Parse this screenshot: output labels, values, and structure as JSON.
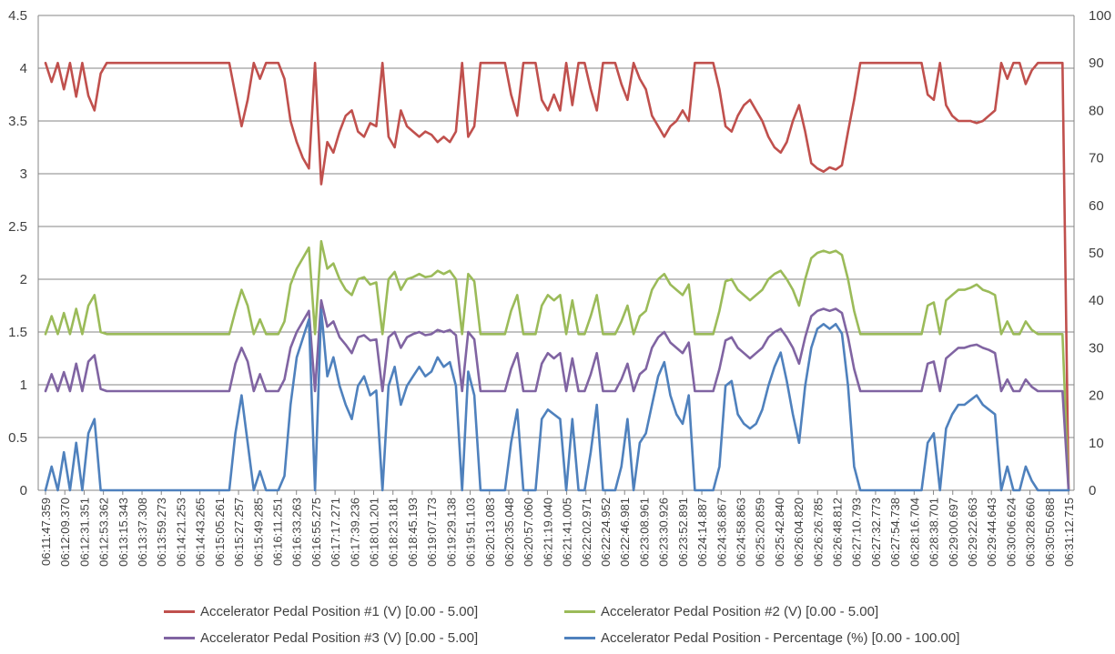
{
  "chart_data": {
    "type": "line",
    "title": "",
    "xlabel": "",
    "ylabel": "",
    "ylim": [
      0,
      4.5
    ],
    "y2lim": [
      0,
      100
    ],
    "y_ticks": [
      "0",
      "0.5",
      "1",
      "1.5",
      "2",
      "2.5",
      "3",
      "3.5",
      "4",
      "4.5"
    ],
    "y2_ticks": [
      "0",
      "10",
      "20",
      "30",
      "40",
      "50",
      "60",
      "70",
      "80",
      "90",
      "100"
    ],
    "grid": true,
    "legend_position": "bottom",
    "x_labels": [
      "06:11:47.359",
      "06:12:09.370",
      "06:12:31.351",
      "06:12:53.362",
      "06:13:15.343",
      "06:13:37.308",
      "06:13:59.273",
      "06:14:21.253",
      "06:14:43.265",
      "06:15:05.261",
      "06:15:27.257",
      "06:15:49.285",
      "06:16:11.251",
      "06:16:33.263",
      "06:16:55.275",
      "06:17:17.271",
      "06:17:39.236",
      "06:18:01.201",
      "06:18:23.181",
      "06:18:45.193",
      "06:19:07.173",
      "06:19:29.138",
      "06:19:51.103",
      "06:20:13.083",
      "06:20:35.048",
      "06:20:57.060",
      "06:21:19.040",
      "06:21:41.005",
      "06:22:02.971",
      "06:22:24.952",
      "06:22:46.981",
      "06:23:08.961",
      "06:23:30.926",
      "06:23:52.891",
      "06:24:14.887",
      "06:24:36.867",
      "06:24:58.863",
      "06:25:20.859",
      "06:25:42.840",
      "06:26:04.820",
      "06:26:26.785",
      "06:26:48.812",
      "06:27:10.793",
      "06:27:32.773",
      "06:27:54.738",
      "06:28:16.704",
      "06:28:38.701",
      "06:29:00.697",
      "06:29:22.663",
      "06:29:44.643",
      "06:30:06.624",
      "06:30:28.660",
      "06:30:50.688",
      "06:31:12.715"
    ],
    "series": [
      {
        "name": "Accelerator Pedal Position #1 (V) [0.00 - 5.00]",
        "color": "#C0504D",
        "axis": "left",
        "values": [
          4.05,
          3.87,
          4.05,
          3.8,
          4.05,
          3.73,
          4.05,
          3.74,
          3.6,
          3.95,
          4.05,
          4.05,
          4.05,
          4.05,
          4.05,
          4.05,
          4.05,
          4.05,
          4.05,
          4.05,
          4.05,
          4.05,
          4.05,
          4.05,
          4.05,
          4.05,
          4.05,
          4.05,
          4.05,
          4.05,
          4.05,
          3.75,
          3.45,
          3.7,
          4.05,
          3.9,
          4.05,
          4.05,
          4.05,
          3.9,
          3.5,
          3.3,
          3.15,
          3.05,
          4.05,
          2.9,
          3.3,
          3.2,
          3.4,
          3.55,
          3.6,
          3.4,
          3.35,
          3.48,
          3.45,
          4.05,
          3.35,
          3.25,
          3.6,
          3.45,
          3.4,
          3.35,
          3.4,
          3.37,
          3.3,
          3.35,
          3.3,
          3.4,
          4.05,
          3.35,
          3.45,
          4.05,
          4.05,
          4.05,
          4.05,
          4.05,
          3.75,
          3.55,
          4.05,
          4.05,
          4.05,
          3.7,
          3.6,
          3.75,
          3.6,
          4.05,
          3.65,
          4.05,
          4.05,
          3.8,
          3.6,
          4.05,
          4.05,
          4.05,
          3.85,
          3.7,
          4.05,
          3.9,
          3.8,
          3.55,
          3.45,
          3.35,
          3.45,
          3.5,
          3.6,
          3.5,
          4.05,
          4.05,
          4.05,
          4.05,
          3.8,
          3.45,
          3.4,
          3.55,
          3.65,
          3.7,
          3.6,
          3.5,
          3.35,
          3.25,
          3.2,
          3.3,
          3.5,
          3.65,
          3.4,
          3.1,
          3.05,
          3.02,
          3.06,
          3.04,
          3.08,
          3.4,
          3.7,
          4.05,
          4.05,
          4.05,
          4.05,
          4.05,
          4.05,
          4.05,
          4.05,
          4.05,
          4.05,
          4.05,
          3.75,
          3.7,
          4.05,
          3.65,
          3.55,
          3.5,
          3.5,
          3.5,
          3.48,
          3.5,
          3.55,
          3.6,
          4.05,
          3.9,
          4.05,
          4.05,
          3.85,
          3.98,
          4.05,
          4.05,
          4.05,
          4.05,
          4.05,
          0.0
        ]
      },
      {
        "name": "Accelerator Pedal Position #2 (V) [0.00 - 5.00]",
        "color": "#9BBB59",
        "axis": "left",
        "values": [
          1.48,
          1.65,
          1.48,
          1.68,
          1.48,
          1.72,
          1.48,
          1.75,
          1.85,
          1.5,
          1.48,
          1.48,
          1.48,
          1.48,
          1.48,
          1.48,
          1.48,
          1.48,
          1.48,
          1.48,
          1.48,
          1.48,
          1.48,
          1.48,
          1.48,
          1.48,
          1.48,
          1.48,
          1.48,
          1.48,
          1.48,
          1.7,
          1.9,
          1.75,
          1.48,
          1.62,
          1.48,
          1.48,
          1.48,
          1.6,
          1.95,
          2.1,
          2.2,
          2.3,
          1.48,
          2.36,
          2.1,
          2.15,
          2.0,
          1.9,
          1.85,
          2.0,
          2.02,
          1.95,
          1.97,
          1.48,
          2.0,
          2.07,
          1.9,
          2.0,
          2.02,
          2.05,
          2.02,
          2.03,
          2.08,
          2.05,
          2.08,
          2.0,
          1.48,
          2.05,
          1.98,
          1.48,
          1.48,
          1.48,
          1.48,
          1.48,
          1.7,
          1.85,
          1.48,
          1.48,
          1.48,
          1.75,
          1.85,
          1.8,
          1.85,
          1.48,
          1.8,
          1.48,
          1.48,
          1.65,
          1.85,
          1.48,
          1.48,
          1.48,
          1.6,
          1.75,
          1.48,
          1.65,
          1.7,
          1.9,
          2.0,
          2.05,
          1.95,
          1.9,
          1.85,
          1.95,
          1.48,
          1.48,
          1.48,
          1.48,
          1.7,
          1.98,
          2.0,
          1.9,
          1.85,
          1.8,
          1.85,
          1.9,
          2.0,
          2.05,
          2.08,
          2.0,
          1.9,
          1.75,
          2.0,
          2.2,
          2.25,
          2.27,
          2.25,
          2.27,
          2.23,
          2.0,
          1.7,
          1.48,
          1.48,
          1.48,
          1.48,
          1.48,
          1.48,
          1.48,
          1.48,
          1.48,
          1.48,
          1.48,
          1.75,
          1.78,
          1.48,
          1.8,
          1.85,
          1.9,
          1.9,
          1.92,
          1.95,
          1.9,
          1.88,
          1.85,
          1.48,
          1.6,
          1.48,
          1.48,
          1.6,
          1.52,
          1.48,
          1.48,
          1.48,
          1.48,
          1.48,
          0.0
        ]
      },
      {
        "name": "Accelerator Pedal Position #3 (V) [0.00 - 5.00]",
        "color": "#8064A2",
        "axis": "left",
        "values": [
          0.94,
          1.1,
          0.94,
          1.12,
          0.94,
          1.2,
          0.94,
          1.22,
          1.28,
          0.96,
          0.94,
          0.94,
          0.94,
          0.94,
          0.94,
          0.94,
          0.94,
          0.94,
          0.94,
          0.94,
          0.94,
          0.94,
          0.94,
          0.94,
          0.94,
          0.94,
          0.94,
          0.94,
          0.94,
          0.94,
          0.94,
          1.2,
          1.35,
          1.22,
          0.94,
          1.1,
          0.94,
          0.94,
          0.94,
          1.05,
          1.35,
          1.5,
          1.6,
          1.7,
          0.94,
          1.8,
          1.55,
          1.6,
          1.45,
          1.38,
          1.3,
          1.45,
          1.47,
          1.42,
          1.43,
          0.94,
          1.45,
          1.5,
          1.35,
          1.45,
          1.48,
          1.5,
          1.47,
          1.48,
          1.52,
          1.5,
          1.52,
          1.47,
          0.94,
          1.5,
          1.43,
          0.94,
          0.94,
          0.94,
          0.94,
          0.94,
          1.15,
          1.3,
          0.94,
          0.94,
          0.94,
          1.2,
          1.3,
          1.25,
          1.3,
          0.94,
          1.25,
          0.94,
          0.94,
          1.1,
          1.3,
          0.94,
          0.94,
          0.94,
          1.05,
          1.2,
          0.94,
          1.1,
          1.15,
          1.35,
          1.45,
          1.5,
          1.4,
          1.35,
          1.3,
          1.4,
          0.94,
          0.94,
          0.94,
          0.94,
          1.15,
          1.42,
          1.45,
          1.35,
          1.3,
          1.25,
          1.3,
          1.35,
          1.45,
          1.5,
          1.53,
          1.45,
          1.35,
          1.2,
          1.45,
          1.65,
          1.7,
          1.72,
          1.7,
          1.72,
          1.68,
          1.45,
          1.15,
          0.94,
          0.94,
          0.94,
          0.94,
          0.94,
          0.94,
          0.94,
          0.94,
          0.94,
          0.94,
          0.94,
          1.2,
          1.22,
          0.94,
          1.25,
          1.3,
          1.35,
          1.35,
          1.37,
          1.38,
          1.35,
          1.33,
          1.3,
          0.94,
          1.05,
          0.94,
          0.94,
          1.05,
          0.98,
          0.94,
          0.94,
          0.94,
          0.94,
          0.94,
          0.0
        ]
      },
      {
        "name": "Accelerator Pedal Position - Percentage (%) [0.00 - 100.00]",
        "color": "#4F81BD",
        "axis": "right",
        "values": [
          0,
          5,
          0,
          8,
          0,
          10,
          0,
          12,
          15,
          0,
          0,
          0,
          0,
          0,
          0,
          0,
          0,
          0,
          0,
          0,
          0,
          0,
          0,
          0,
          0,
          0,
          0,
          0,
          0,
          0,
          0,
          12,
          20,
          10,
          0,
          4,
          0,
          0,
          0,
          3,
          18,
          28,
          32,
          36,
          0,
          38,
          24,
          28,
          22,
          18,
          15,
          22,
          24,
          20,
          21,
          0,
          22,
          26,
          18,
          22,
          24,
          26,
          24,
          25,
          28,
          26,
          27,
          22,
          0,
          25,
          20,
          0,
          0,
          0,
          0,
          0,
          10,
          17,
          0,
          0,
          0,
          15,
          17,
          16,
          15,
          0,
          15,
          0,
          0,
          8,
          18,
          0,
          0,
          0,
          5,
          15,
          0,
          10,
          12,
          18,
          24,
          27,
          20,
          16,
          14,
          20,
          0,
          0,
          0,
          0,
          5,
          22,
          23,
          16,
          14,
          13,
          14,
          17,
          22,
          26,
          29,
          23,
          16,
          10,
          22,
          30,
          34,
          35,
          34,
          35,
          33,
          22,
          5,
          0,
          0,
          0,
          0,
          0,
          0,
          0,
          0,
          0,
          0,
          0,
          10,
          12,
          0,
          13,
          16,
          18,
          18,
          19,
          20,
          18,
          17,
          16,
          0,
          5,
          0,
          0,
          5,
          2,
          0,
          0,
          0,
          0,
          0,
          0
        ]
      }
    ]
  }
}
